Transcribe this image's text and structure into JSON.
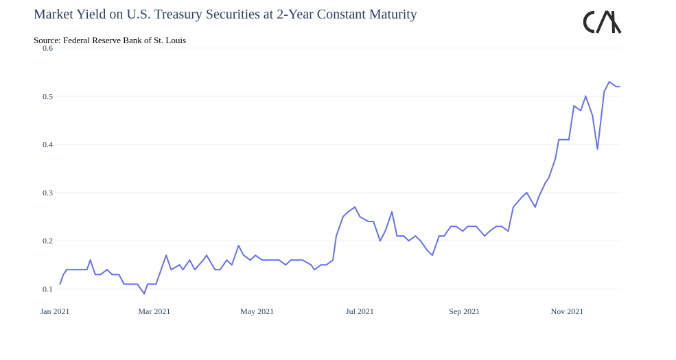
{
  "page": {
    "title": "Market Yield on U.S. Treasury Securities at 2-Year Constant Maturity",
    "subtitle": "Source: Federal Reserve Bank of St. Louis",
    "logo_text": "CM"
  },
  "colors": {
    "line": "#636efa",
    "grid": "#eef1f5",
    "text": "#2a3f5f"
  },
  "chart_data": {
    "type": "line",
    "title": "Market Yield on U.S. Treasury Securities at 2-Year Constant Maturity",
    "subtitle": "Source: Federal Reserve Bank of St. Louis",
    "xlabel": "",
    "ylabel": "",
    "xlim": [
      "2021-01-01",
      "2021-12-03"
    ],
    "ylim": [
      0.085,
      0.6
    ],
    "yticks": [
      0.1,
      0.2,
      0.3,
      0.4,
      0.5,
      0.6
    ],
    "yticklabels": [
      "0.1",
      "0.2",
      "0.3",
      "0.4",
      "0.5",
      "0.6"
    ],
    "xticks": [
      "2021-01-01",
      "2021-03-01",
      "2021-05-01",
      "2021-07-01",
      "2021-09-01",
      "2021-11-01"
    ],
    "xticklabels": [
      "Jan 2021",
      "Mar 2021",
      "May 2021",
      "Jul 2021",
      "Sep 2021",
      "Nov 2021"
    ],
    "grid": true,
    "legend": false,
    "series": [
      {
        "x": [
          "2021-01-04",
          "2021-01-06",
          "2021-01-08",
          "2021-01-12",
          "2021-01-15",
          "2021-01-20",
          "2021-01-22",
          "2021-01-25",
          "2021-01-28",
          "2021-02-01",
          "2021-02-04",
          "2021-02-08",
          "2021-02-11",
          "2021-02-16",
          "2021-02-19",
          "2021-02-23",
          "2021-02-25",
          "2021-02-26",
          "2021-03-02",
          "2021-03-04",
          "2021-03-08",
          "2021-03-11",
          "2021-03-16",
          "2021-03-18",
          "2021-03-22",
          "2021-03-25",
          "2021-03-30",
          "2021-04-01",
          "2021-04-06",
          "2021-04-09",
          "2021-04-13",
          "2021-04-16",
          "2021-04-20",
          "2021-04-23",
          "2021-04-27",
          "2021-04-30",
          "2021-05-04",
          "2021-05-07",
          "2021-05-11",
          "2021-05-14",
          "2021-05-18",
          "2021-05-21",
          "2021-05-25",
          "2021-05-28",
          "2021-06-02",
          "2021-06-04",
          "2021-06-08",
          "2021-06-11",
          "2021-06-15",
          "2021-06-17",
          "2021-06-21",
          "2021-06-24",
          "2021-06-28",
          "2021-07-01",
          "2021-07-06",
          "2021-07-09",
          "2021-07-13",
          "2021-07-16",
          "2021-07-20",
          "2021-07-23",
          "2021-07-27",
          "2021-07-30",
          "2021-08-03",
          "2021-08-06",
          "2021-08-10",
          "2021-08-13",
          "2021-08-17",
          "2021-08-20",
          "2021-08-24",
          "2021-08-27",
          "2021-08-31",
          "2021-09-03",
          "2021-09-08",
          "2021-09-13",
          "2021-09-16",
          "2021-09-20",
          "2021-09-23",
          "2021-09-27",
          "2021-09-30",
          "2021-10-05",
          "2021-10-08",
          "2021-10-13",
          "2021-10-15",
          "2021-10-19",
          "2021-10-21",
          "2021-10-25",
          "2021-10-27",
          "2021-10-29",
          "2021-11-02",
          "2021-11-05",
          "2021-11-09",
          "2021-11-12",
          "2021-11-16",
          "2021-11-19",
          "2021-11-23",
          "2021-11-26",
          "2021-11-30",
          "2021-12-02"
        ],
        "values": [
          0.11,
          0.13,
          0.14,
          0.14,
          0.14,
          0.14,
          0.16,
          0.13,
          0.13,
          0.14,
          0.13,
          0.13,
          0.11,
          0.11,
          0.11,
          0.09,
          0.11,
          0.11,
          0.11,
          0.13,
          0.17,
          0.14,
          0.15,
          0.14,
          0.16,
          0.14,
          0.16,
          0.17,
          0.14,
          0.14,
          0.16,
          0.15,
          0.19,
          0.17,
          0.16,
          0.17,
          0.16,
          0.16,
          0.16,
          0.16,
          0.15,
          0.16,
          0.16,
          0.16,
          0.15,
          0.14,
          0.15,
          0.15,
          0.16,
          0.21,
          0.25,
          0.26,
          0.27,
          0.25,
          0.24,
          0.24,
          0.2,
          0.22,
          0.26,
          0.21,
          0.21,
          0.2,
          0.21,
          0.2,
          0.18,
          0.17,
          0.21,
          0.21,
          0.23,
          0.23,
          0.22,
          0.23,
          0.23,
          0.21,
          0.22,
          0.23,
          0.23,
          0.22,
          0.27,
          0.29,
          0.3,
          0.27,
          0.29,
          0.32,
          0.33,
          0.37,
          0.41,
          0.41,
          0.41,
          0.48,
          0.47,
          0.5,
          0.46,
          0.39,
          0.51,
          0.53,
          0.52,
          0.52
        ]
      }
    ]
  }
}
